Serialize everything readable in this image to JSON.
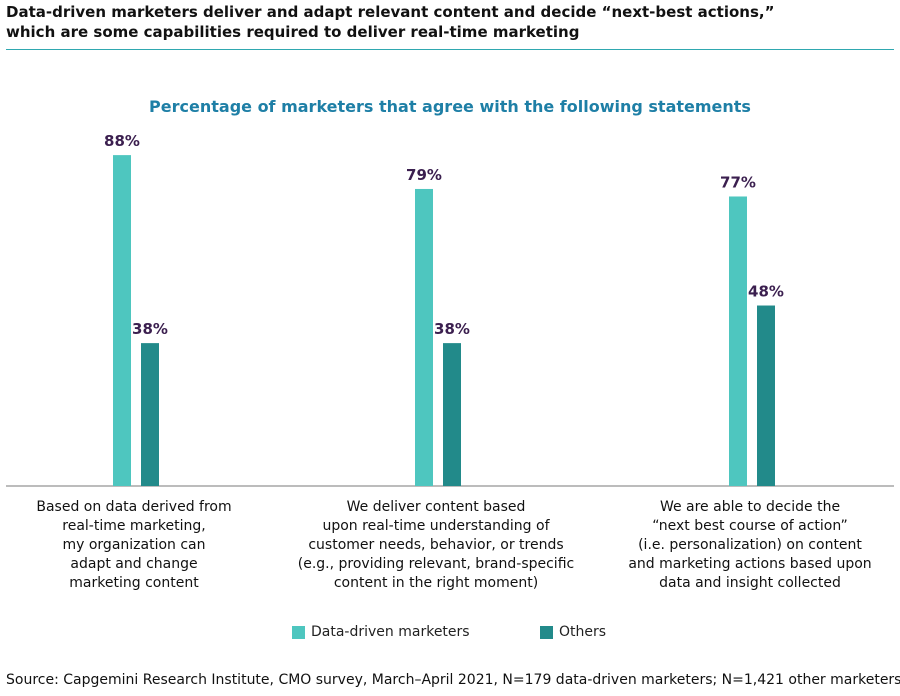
{
  "header": {
    "title_line1": "Data-driven marketers deliver and adapt relevant content and decide “next-best actions,”",
    "title_line2": "which are some capabilities required to deliver real-time marketing"
  },
  "chart_data": {
    "type": "bar",
    "title": "Percentage of marketers that agree with the following statements",
    "categories": [
      [
        "Based on data derived from",
        "real-time marketing,",
        "my organization can",
        "adapt and change",
        "marketing content"
      ],
      [
        "We deliver content based",
        "upon real-time understanding of",
        "customer needs, behavior, or trends",
        "(e.g., providing relevant, brand-specific",
        "content in the right moment)"
      ],
      [
        "We are able to decide the",
        "“next best course of action”",
        "(i.e. personalization) on content",
        "and marketing actions based upon",
        "data and insight collected"
      ]
    ],
    "series": [
      {
        "name": "Data-driven marketers",
        "color": "#4ec6bf",
        "values": [
          88,
          79,
          77
        ],
        "labels": [
          "88%",
          "79%",
          "77%"
        ]
      },
      {
        "name": "Others",
        "color": "#228a8a",
        "values": [
          38,
          38,
          48
        ],
        "labels": [
          "38%",
          "38%",
          "48%"
        ]
      }
    ],
    "xlabel": "",
    "ylabel": "",
    "ylim": [
      0,
      100
    ],
    "grid": false,
    "legend": "bottom-center",
    "label_color": "#3b1f4f",
    "axis_color": "#7a7a7a"
  },
  "legend": {
    "items": [
      "Data-driven marketers",
      "Others"
    ]
  },
  "source": "Source: Capgemini Research Institute, CMO survey, March–April 2021, N=179 data-driven marketers; N=1,421 other marketers."
}
